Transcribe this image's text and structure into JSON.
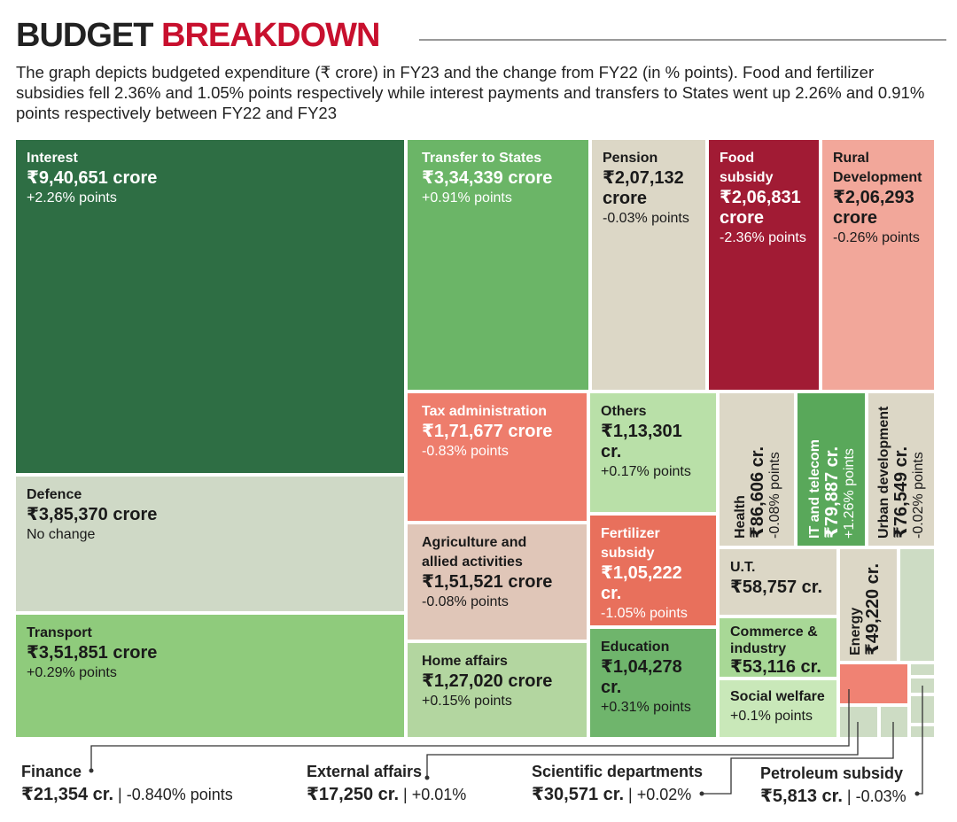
{
  "header": {
    "title_part1": "BUDGET",
    "title_part2": "BREAKDOWN",
    "description": "The graph depicts budgeted expenditure (₹ crore) in FY23 and the change from FY22 (in % points). Food and fertilizer subsidies fell 2.36% and 1.05% points respectively while interest payments and transfers to States went up 2.26% and 0.91% points respectively between FY22 and FY23"
  },
  "colors": {
    "interest": "#2e6e44",
    "transfer": "#6bb567",
    "pension": "#dcd7c6",
    "food": "#a11b34",
    "rural": "#f2a79a",
    "defence": "#cfd9c6",
    "transport": "#8fcb7c",
    "tax": "#ee7d6c",
    "others": "#b9e0a8",
    "health": "#dcd7c6",
    "it": "#59a85a",
    "urban": "#dcd7c6",
    "agri": "#e0c6b8",
    "fertilizer": "#e8705c",
    "home": "#b3d6a0",
    "education": "#6fb56c",
    "ut": "#dcd7c6",
    "commerce": "#a8d896",
    "social": "#c9e8b9",
    "energy": "#dcd7c6",
    "finance": "#f08273",
    "misc": "#cddcc4"
  },
  "chart_data": {
    "type": "treemap",
    "title": "BUDGET BREAKDOWN",
    "unit": "₹ crore",
    "items": [
      {
        "name": "Interest",
        "value": "₹9,40,651 crore",
        "change": "+2.26% points"
      },
      {
        "name": "Transfer to States",
        "value": "₹3,34,339 crore",
        "change": "+0.91% points"
      },
      {
        "name": "Pension",
        "value": "₹2,07,132 crore",
        "change": "-0.03% points"
      },
      {
        "name": "Food subsidy",
        "value": "₹2,06,831 crore",
        "change": "-2.36% points"
      },
      {
        "name": "Rural Development",
        "value": "₹2,06,293 crore",
        "change": "-0.26% points"
      },
      {
        "name": "Defence",
        "value": "₹3,85,370 crore",
        "change": "No change"
      },
      {
        "name": "Transport",
        "value": "₹3,51,851 crore",
        "change": "+0.29% points"
      },
      {
        "name": "Tax administration",
        "value": "₹1,71,677 crore",
        "change": "-0.83% points"
      },
      {
        "name": "Others",
        "value": "₹1,13,301 cr.",
        "change": "+0.17% points"
      },
      {
        "name": "Health",
        "value": "₹86,606 cr.",
        "change": "-0.08% points"
      },
      {
        "name": "IT and telecom",
        "value": "₹79,887 cr.",
        "change": "+1.26% points"
      },
      {
        "name": "Urban development",
        "value": "₹76,549 cr.",
        "change": "-0.02% points"
      },
      {
        "name": "Agriculture and allied activities",
        "value": "₹1,51,521 crore",
        "change": "-0.08% points"
      },
      {
        "name": "Fertilizer subsidy",
        "value": "₹1,05,222 cr.",
        "change": "-1.05% points"
      },
      {
        "name": "Home affairs",
        "value": "₹1,27,020 crore",
        "change": "+0.15% points"
      },
      {
        "name": "Education",
        "value": "₹1,04,278 cr.",
        "change": "+0.31% points"
      },
      {
        "name": "U.T.",
        "value": "₹58,757 cr.",
        "change": ""
      },
      {
        "name": "Commerce & industry",
        "value": "₹53,116 cr.",
        "change": ""
      },
      {
        "name": "Social welfare",
        "value": "",
        "change": "+0.1% points"
      },
      {
        "name": "Energy",
        "value": "₹49,220 cr.",
        "change": ""
      }
    ],
    "callouts": [
      {
        "name": "Finance",
        "value": "₹21,354 cr.",
        "change": "| -0.840% points"
      },
      {
        "name": "External affairs",
        "value": "₹17,250 cr.",
        "change": "| +0.01%"
      },
      {
        "name": "Scientific departments",
        "value": "₹30,571 cr.",
        "change": "| +0.02%"
      },
      {
        "name": "Petroleum subsidy",
        "value": "₹5,813 cr.",
        "change": "| -0.03%"
      }
    ]
  }
}
